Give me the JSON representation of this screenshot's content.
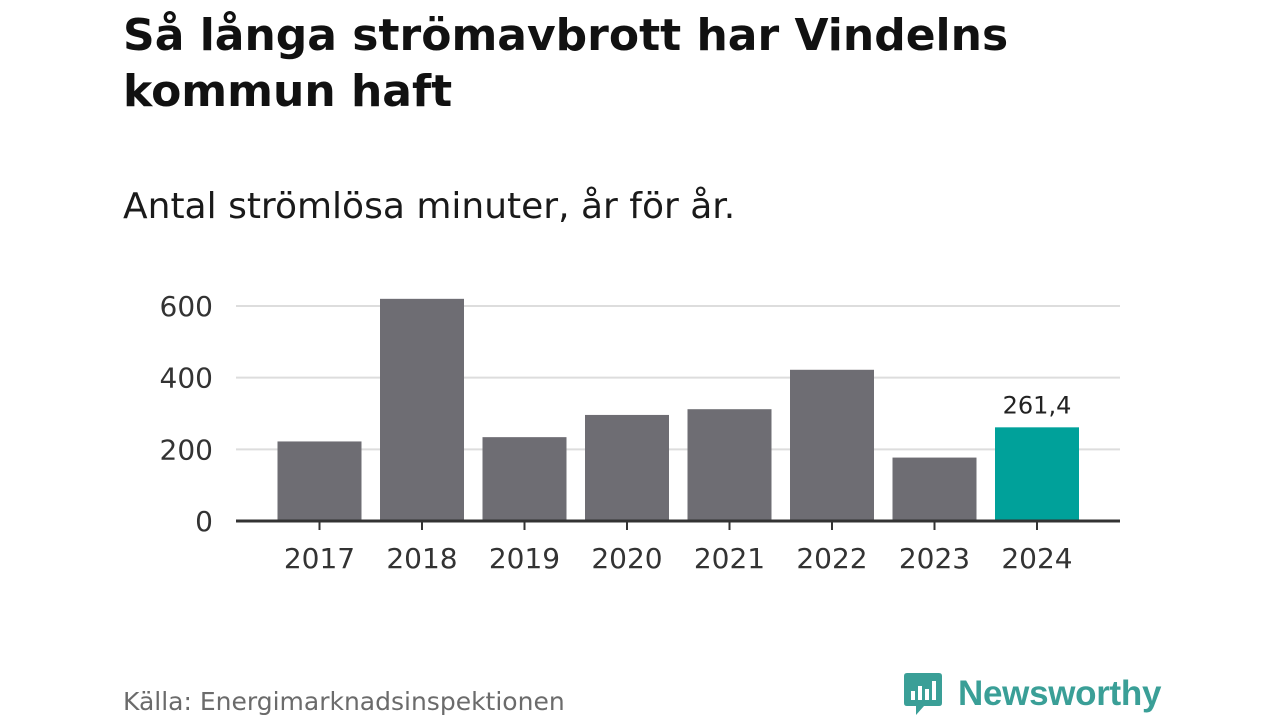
{
  "header": {
    "title": "Så långa strömavbrott har Vindelns kommun haft",
    "subtitle": "Antal strömlösa minuter, år för år."
  },
  "footer": {
    "source": "Källa: Energimarknadsinspektionen",
    "brand_name": "Newsworthy",
    "brand_logo_icon": "bar-chart-speech-bubble-icon",
    "brand_color": "#3a9f97"
  },
  "colors": {
    "bar_default": "#6e6d73",
    "bar_highlight": "#00a19a",
    "gridline": "#dddddd",
    "axis": "#333333"
  },
  "chart_data": {
    "type": "bar",
    "title": "Så långa strömavbrott har Vindelns kommun haft",
    "subtitle": "Antal strömlösa minuter, år för år.",
    "xlabel": "",
    "ylabel": "",
    "categories": [
      "2017",
      "2018",
      "2019",
      "2020",
      "2021",
      "2022",
      "2023",
      "2024"
    ],
    "values": [
      222,
      620,
      234,
      296,
      312,
      422,
      177,
      261.4
    ],
    "highlight_index": 7,
    "data_labels": [
      {
        "index": 7,
        "text": "261,4"
      }
    ],
    "yticks": [
      0,
      200,
      400,
      600
    ],
    "ylim": [
      0,
      600
    ],
    "grid": true,
    "legend": "none"
  }
}
